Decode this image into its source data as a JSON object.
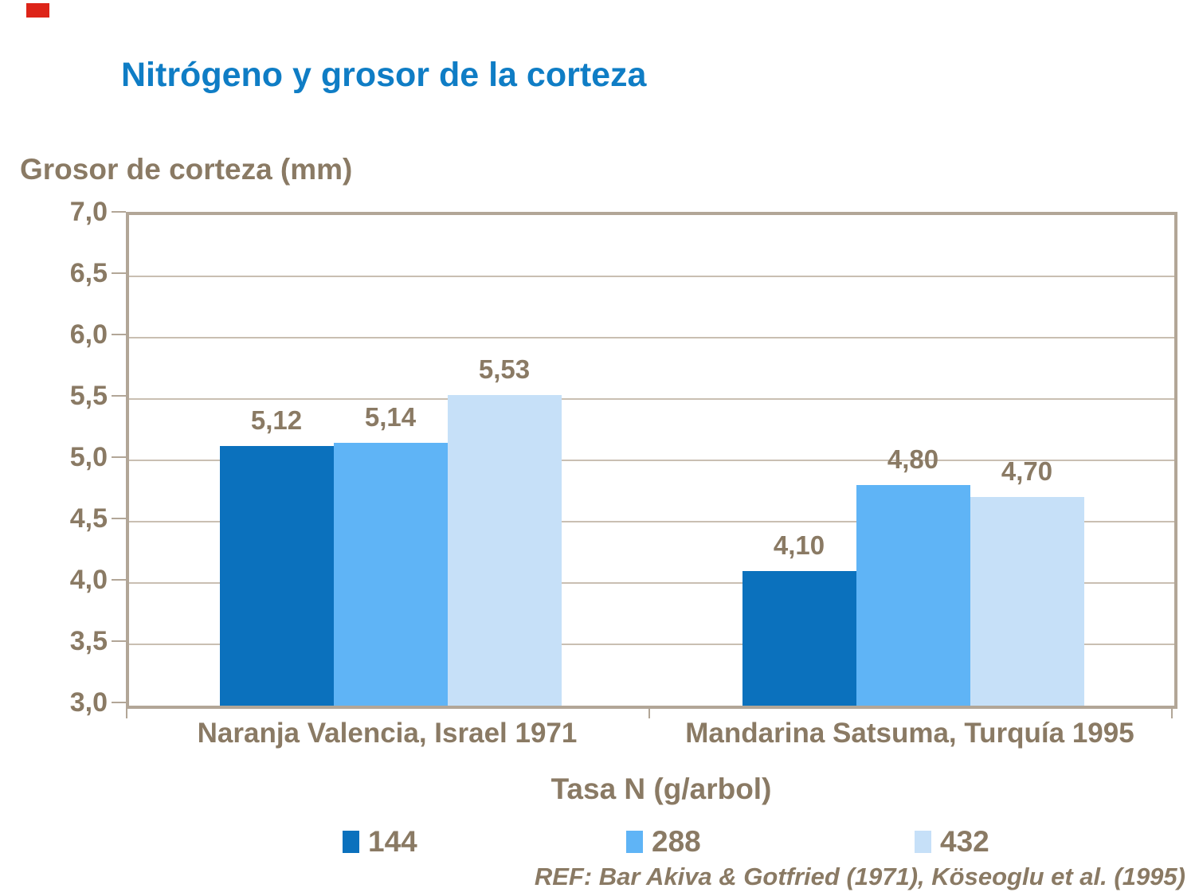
{
  "decor": {
    "corner_mark_color": "#DD2418"
  },
  "colors": {
    "title_blue": "#0F7DC5",
    "text_taupe": "#8A7A64",
    "frame": "#B2A697",
    "gridline": "#C9BFB2"
  },
  "chart_data": {
    "type": "bar",
    "title": "Nitrógeno y grosor de la corteza",
    "ylabel": "Grosor de corteza (mm)",
    "xlabel": "Tasa N (g/arbol)",
    "categories": [
      "Naranja Valencia, Israel 1971",
      "Mandarina Satsuma, Turquía 1995"
    ],
    "series": [
      {
        "name": "144",
        "color": "#0B71BD",
        "values": [
          5.12,
          4.1
        ]
      },
      {
        "name": "288",
        "color": "#5FB4F6",
        "values": [
          5.14,
          4.8
        ]
      },
      {
        "name": "432",
        "color": "#C6E0F8",
        "values": [
          5.53,
          4.7
        ]
      }
    ],
    "data_labels": [
      [
        "5,12",
        "4,10"
      ],
      [
        "5,14",
        "4,80"
      ],
      [
        "5,53",
        "4,70"
      ]
    ],
    "ylim": [
      3.0,
      7.0
    ],
    "ytick_step": 0.5,
    "ytick_labels": [
      "3,0",
      "3,5",
      "4,0",
      "4,5",
      "5,0",
      "5,5",
      "6,0",
      "6,5",
      "7,0"
    ],
    "grid": true,
    "legend_position": "bottom"
  },
  "footer": {
    "reference": "REF: Bar Akiva & Gotfried (1971), Köseoglu et al. (1995)"
  }
}
